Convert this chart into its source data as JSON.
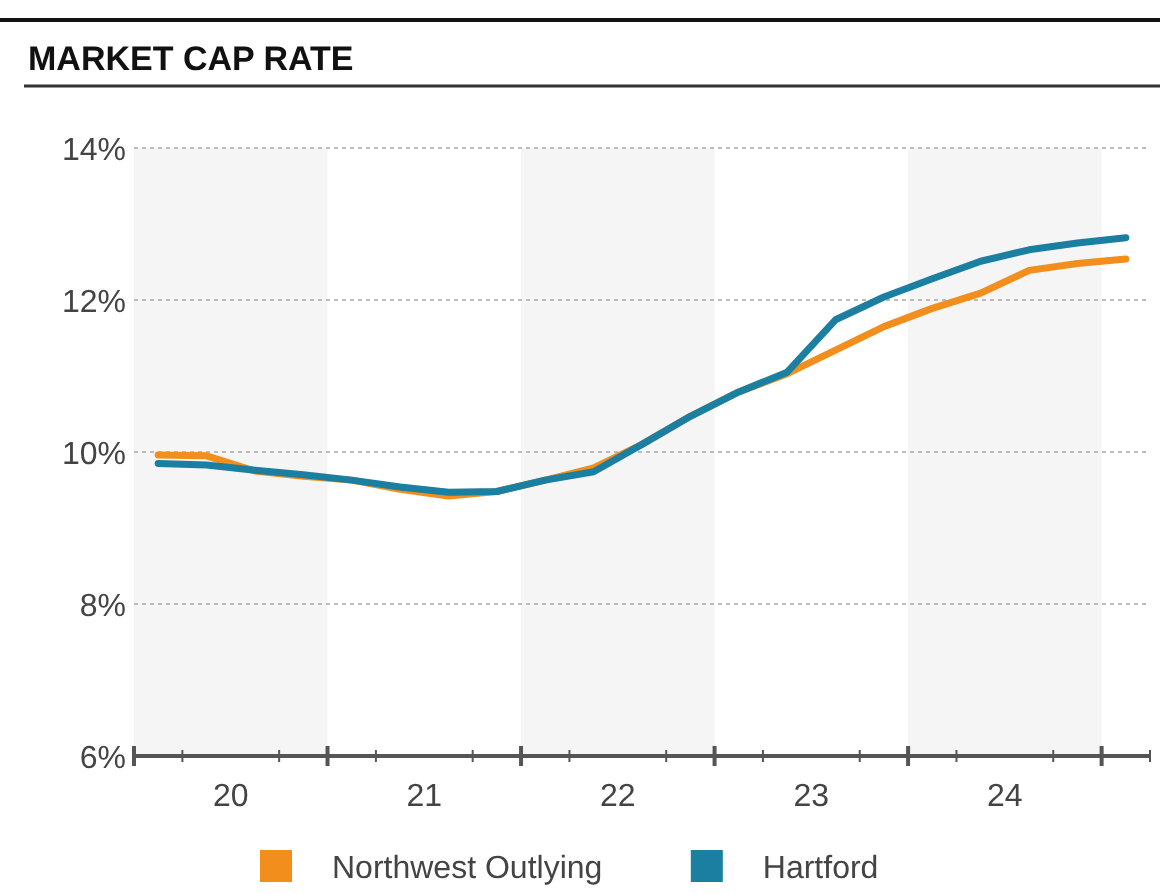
{
  "chart_data": {
    "type": "line",
    "title": "MARKET CAP RATE",
    "x": [
      19.625,
      19.875,
      20.125,
      20.375,
      20.625,
      20.875,
      21.125,
      21.375,
      21.625,
      21.875,
      22.125,
      22.375,
      22.625,
      22.875,
      23.125,
      23.375,
      23.625,
      23.875,
      24.125,
      24.375,
      24.625
    ],
    "series": [
      {
        "name": "Northwest Outlying",
        "color": "#f28e1c",
        "values": [
          9.96,
          9.95,
          9.75,
          9.68,
          9.63,
          9.51,
          9.42,
          9.48,
          9.63,
          9.79,
          10.1,
          10.47,
          10.79,
          11.03,
          11.34,
          11.65,
          11.89,
          12.09,
          12.39,
          12.48,
          12.54
        ]
      },
      {
        "name": "Hartford",
        "color": "#1a7fa0",
        "values": [
          9.85,
          9.83,
          9.76,
          9.7,
          9.63,
          9.54,
          9.47,
          9.48,
          9.63,
          9.74,
          10.1,
          10.47,
          10.79,
          11.05,
          11.74,
          12.04,
          12.28,
          12.51,
          12.66,
          12.75,
          12.82
        ]
      }
    ],
    "xlim": [
      19.5,
      24.75
    ],
    "xticks": [
      {
        "value": 19.5,
        "label": null
      },
      {
        "value": 19.75,
        "label": null
      },
      20,
      {
        "value": 20.25,
        "label": null
      },
      {
        "value": 20.5,
        "label": null
      },
      {
        "value": 20.75,
        "label": null
      },
      21,
      {
        "value": 21.25,
        "label": null
      },
      {
        "value": 21.5,
        "label": null
      },
      {
        "value": 21.75,
        "label": null
      },
      22,
      {
        "value": 22.25,
        "label": null
      },
      {
        "value": 22.5,
        "label": null
      },
      {
        "value": 22.75,
        "label": null
      },
      23,
      {
        "value": 23.25,
        "label": null
      },
      {
        "value": 23.5,
        "label": null
      },
      {
        "value": 23.75,
        "label": null
      },
      24,
      {
        "value": 24.25,
        "label": null
      },
      {
        "value": 24.5,
        "label": null
      },
      {
        "value": 24.75,
        "label": null
      }
    ],
    "ylim": [
      6,
      14
    ],
    "yticks": [
      {
        "value": 6,
        "label": "6%"
      },
      {
        "value": 8,
        "label": "8%"
      },
      {
        "value": 10,
        "label": "10%"
      },
      {
        "value": 12,
        "label": "12%"
      },
      {
        "value": 14,
        "label": "14%"
      }
    ],
    "bands": [
      {
        "axis": "x",
        "from": 19.5,
        "to": 20.5,
        "color": "#f5f5f5"
      },
      {
        "axis": "x",
        "from": 21.5,
        "to": 22.5,
        "color": "#f5f5f5"
      },
      {
        "axis": "x",
        "from": 23.5,
        "to": 24.5,
        "color": "#f5f5f5"
      }
    ],
    "grid": "y",
    "legend": "bottom"
  }
}
